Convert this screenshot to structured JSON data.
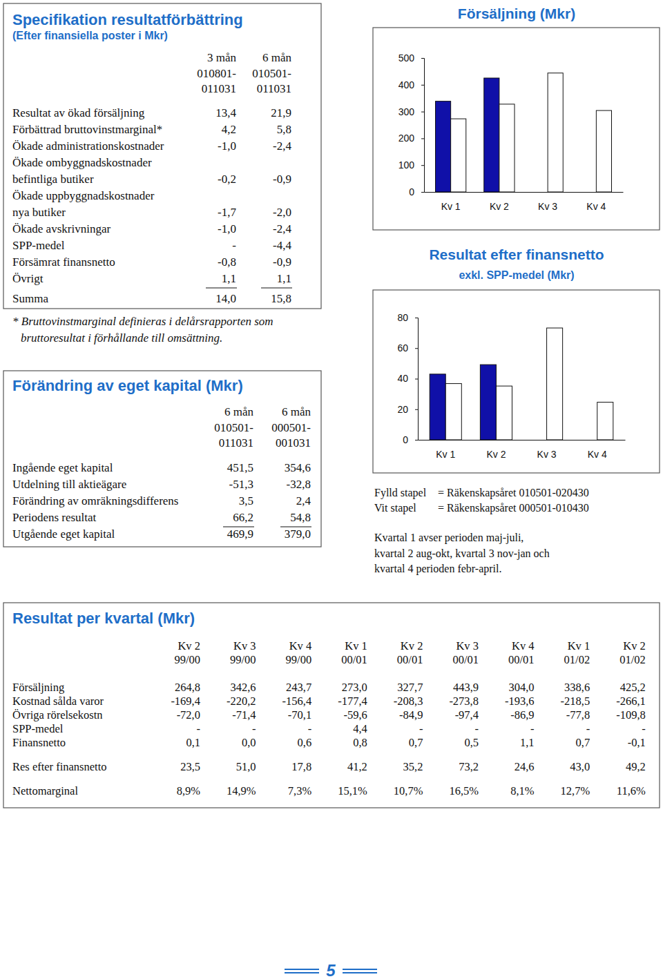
{
  "chart_data": [
    {
      "type": "bar",
      "title": "Försäljning (Mkr)",
      "categories": [
        "Kv 1",
        "Kv 2",
        "Kv 3",
        "Kv 4"
      ],
      "series": [
        {
          "color": "#1010a8",
          "values": [
            338.6,
            425.2,
            null,
            null
          ]
        },
        {
          "color": "#ffffff",
          "values": [
            273.0,
            327.7,
            443.9,
            304.0
          ]
        }
      ],
      "ylim": [
        0,
        500
      ],
      "yticks": [
        0,
        100,
        200,
        300,
        400,
        500
      ]
    },
    {
      "type": "bar",
      "title": "Resultat efter finansnetto",
      "subtitle": "exkl. SPP-medel (Mkr)",
      "categories": [
        "Kv 1",
        "Kv 2",
        "Kv 3",
        "Kv 4"
      ],
      "series": [
        {
          "color": "#1010a8",
          "values": [
            43.0,
            49.2,
            null,
            null
          ]
        },
        {
          "color": "#ffffff",
          "values": [
            36.8,
            35.2,
            73.2,
            24.6
          ]
        }
      ],
      "ylim": [
        0,
        80
      ],
      "yticks": [
        0,
        20,
        40,
        60,
        80
      ]
    }
  ],
  "specification": {
    "title": "Specifikation resultatförbättring",
    "subtitle": "(Efter finansiella poster i Mkr)",
    "columns": [
      [
        "3 mån",
        "010801-",
        "011031"
      ],
      [
        "6 mån",
        "010501-",
        "011031"
      ]
    ],
    "rows": [
      {
        "label": [
          "Resultat av ökad försäljning"
        ],
        "values": [
          "13,4",
          "21,9"
        ]
      },
      {
        "label": [
          "Förbättrad bruttovinstmarginal*"
        ],
        "values": [
          "4,2",
          "5,8"
        ]
      },
      {
        "label": [
          "Ökade administrationskostnader"
        ],
        "values": [
          "-1,0",
          "-2,4"
        ]
      },
      {
        "label": [
          "Ökade ombyggnadskostnader",
          "befintliga butiker"
        ],
        "values": [
          "-0,2",
          "-0,9"
        ]
      },
      {
        "label": [
          "Ökade uppbyggnadskostnader",
          "nya butiker"
        ],
        "values": [
          "-1,7",
          "-2,0"
        ]
      },
      {
        "label": [
          "Ökade avskrivningar"
        ],
        "values": [
          "-1,0",
          "-2,4"
        ]
      },
      {
        "label": [
          "SPP-medel"
        ],
        "values": [
          "-",
          "-4,4"
        ]
      },
      {
        "label": [
          "Försämrat finansnetto"
        ],
        "values": [
          "-0,8",
          "-0,9"
        ]
      },
      {
        "label": [
          "Övrigt"
        ],
        "values": [
          "1,1",
          "1,1"
        ]
      },
      {
        "label": [
          "Summa"
        ],
        "values": [
          "14,0",
          "15,8"
        ]
      }
    ],
    "footnote": [
      "* Bruttovinstmarginal definieras i delårsrapporten som",
      "bruttoresultat i förhållande till omsättning."
    ]
  },
  "equity": {
    "title": "Förändring av eget kapital (Mkr)",
    "columns": [
      [
        "6 mån",
        "010501-",
        "011031"
      ],
      [
        "6 mån",
        "000501-",
        "001031"
      ]
    ],
    "rows": [
      {
        "label": [
          "Ingående eget kapital"
        ],
        "values": [
          "451,5",
          "354,6"
        ]
      },
      {
        "label": [
          "Utdelning till aktieägare"
        ],
        "values": [
          "-51,3",
          "-32,8"
        ]
      },
      {
        "label": [
          "Förändring av omräkningsdifferens"
        ],
        "values": [
          "3,5",
          "2,4"
        ]
      },
      {
        "label": [
          "Periodens resultat"
        ],
        "values": [
          "66,2",
          "54,8"
        ]
      },
      {
        "label": [
          "Utgående eget kapital"
        ],
        "values": [
          "469,9",
          "379,0"
        ]
      }
    ]
  },
  "legend_notes": [
    [
      "Fylld stapel",
      "= Räkenskapsåret 010501-020430"
    ],
    [
      "Vit stapel",
      "= Räkenskapsåret 000501-010430"
    ]
  ],
  "quarter_note": [
    "Kvartal 1 avser perioden maj-juli,",
    "kvartal 2 aug-okt, kvartal 3 nov-jan och",
    "kvartal 4 perioden febr-april."
  ],
  "quarterly": {
    "title": "Resultat per kvartal (Mkr)",
    "columns": [
      [
        "Kv 2",
        "99/00"
      ],
      [
        "Kv 3",
        "99/00"
      ],
      [
        "Kv 4",
        "99/00"
      ],
      [
        "Kv 1",
        "00/01"
      ],
      [
        "Kv 2",
        "00/01"
      ],
      [
        "Kv 3",
        "00/01"
      ],
      [
        "Kv 4",
        "00/01"
      ],
      [
        "Kv 1",
        "01/02"
      ],
      [
        "Kv 2",
        "01/02"
      ]
    ],
    "sections": [
      [
        {
          "label": "Försäljning",
          "values": [
            "264,8",
            "342,6",
            "243,7",
            "273,0",
            "327,7",
            "443,9",
            "304,0",
            "338,6",
            "425,2"
          ]
        },
        {
          "label": "Kostnad sålda varor",
          "values": [
            "-169,4",
            "-220,2",
            "-156,4",
            "-177,4",
            "-208,3",
            "-273,8",
            "-193,6",
            "-218,5",
            "-266,1"
          ]
        },
        {
          "label": "Övriga rörelsekostn",
          "values": [
            "-72,0",
            "-71,4",
            "-70,1",
            "-59,6",
            "-84,9",
            "-97,4",
            "-86,9",
            "-77,8",
            "-109,8"
          ]
        },
        {
          "label": "SPP-medel",
          "values": [
            "-",
            "-",
            "-",
            "4,4",
            "-",
            "-",
            "-",
            "-",
            "-"
          ]
        },
        {
          "label": "Finansnetto",
          "values": [
            "0,1",
            "0,0",
            "0,6",
            "0,8",
            "0,7",
            "0,5",
            "1,1",
            "0,7",
            "-0,1"
          ]
        }
      ],
      [
        {
          "label": "Res efter finansnetto",
          "values": [
            "23,5",
            "51,0",
            "17,8",
            "41,2",
            "35,2",
            "73,2",
            "24,6",
            "43,0",
            "49,2"
          ]
        }
      ],
      [
        {
          "label": "Nettomarginal",
          "values": [
            "8,9%",
            "14,9%",
            "7,3%",
            "15,1%",
            "10,7%",
            "16,5%",
            "8,1%",
            "12,7%",
            "11,6%"
          ]
        }
      ]
    ]
  },
  "page_number": "5"
}
